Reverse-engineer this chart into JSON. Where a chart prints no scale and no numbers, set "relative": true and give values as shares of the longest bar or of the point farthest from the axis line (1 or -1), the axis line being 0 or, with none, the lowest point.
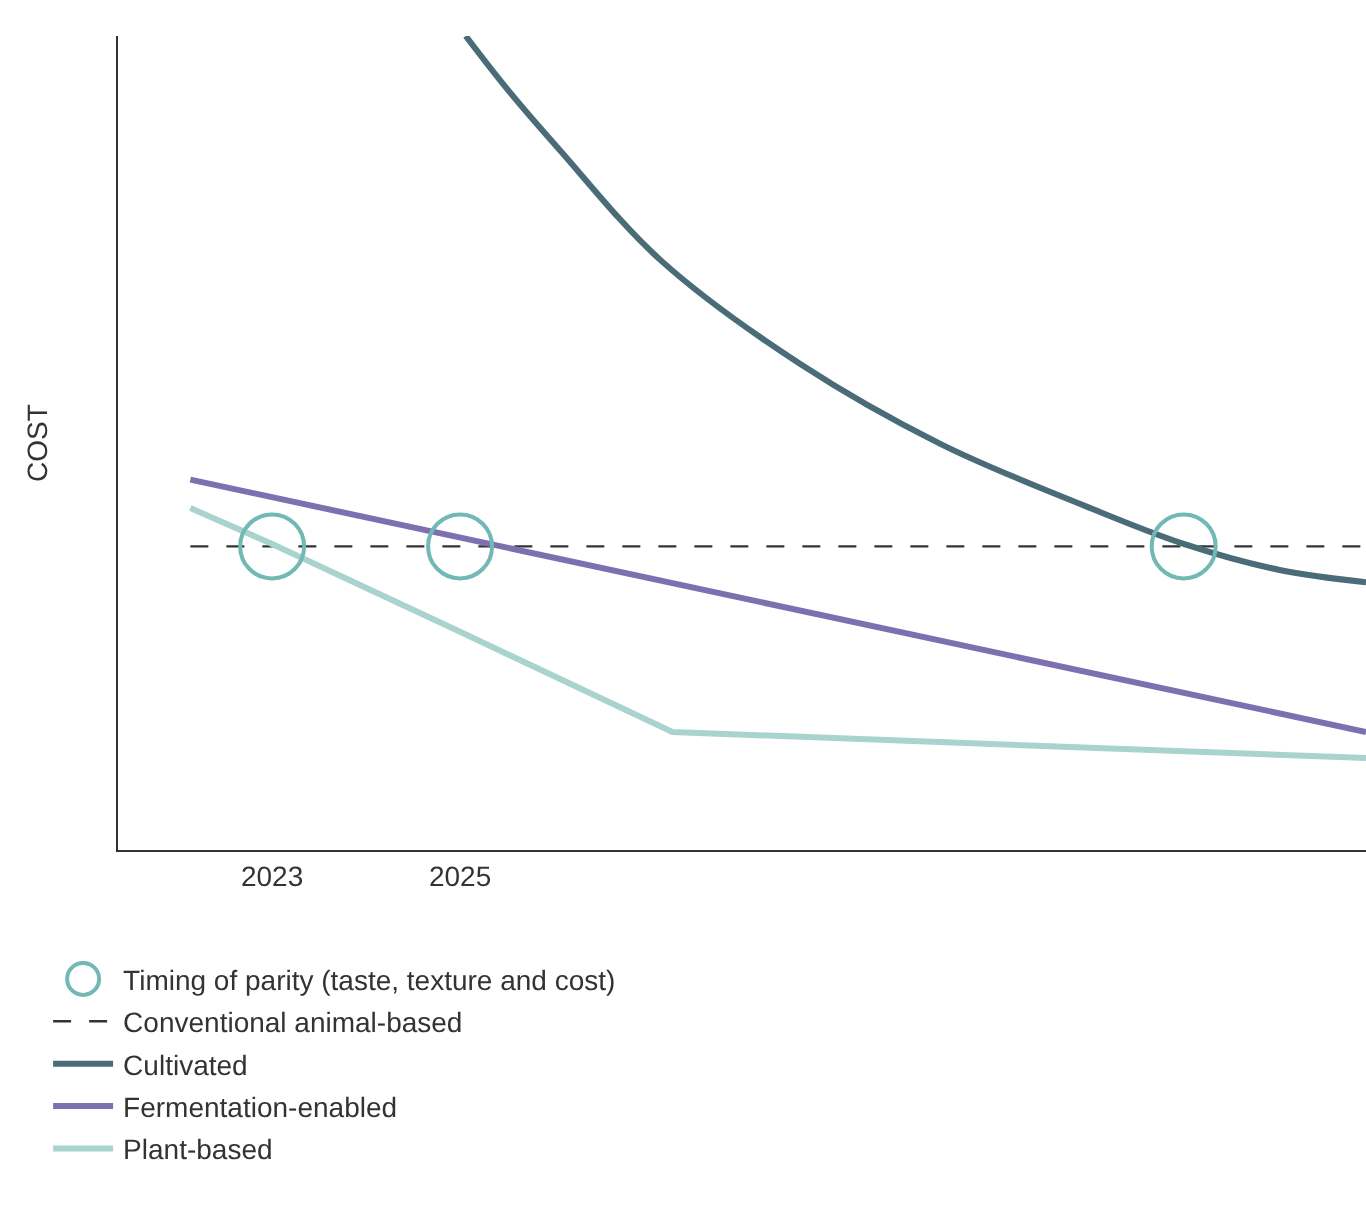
{
  "chart_data": {
    "type": "line",
    "relative": true,
    "ylabel": "COST",
    "xlim": [
      2021.36,
      2034.64
    ],
    "xticks": [
      2023,
      2025
    ],
    "grid": false,
    "legend": "bottom",
    "marker": "none",
    "tick_labels": "x",
    "series": [
      {
        "name": "Timing of parity (taste, texture and cost)",
        "type": "scatter",
        "marker": "circle",
        "color": "#72b8b5",
        "x": [
          2023,
          2025,
          2032.7
        ],
        "values": [
          0.373,
          0.373,
          0.373
        ]
      },
      {
        "name": "Conventional animal-based",
        "color": "#333333",
        "line_style": "dashed",
        "x": [
          2022.13,
          2034.64
        ],
        "values": [
          0.373,
          0.373
        ]
      },
      {
        "name": "Cultivated",
        "color": "#4a6b78",
        "x": [
          2025.06,
          2025.5,
          2026.06,
          2027.13,
          2028.62,
          2030.11,
          2031.6,
          2032.7,
          2033.72,
          2034.64
        ],
        "values": [
          1.0,
          0.935,
          0.86,
          0.725,
          0.597,
          0.499,
          0.425,
          0.376,
          0.344,
          0.329
        ]
      },
      {
        "name": "Fermentation-enabled",
        "color": "#7e70b0",
        "x": [
          2022.13,
          2034.64
        ],
        "values": [
          0.455,
          0.145
        ]
      },
      {
        "name": "Plant-based",
        "color": "#a9d3ce",
        "x": [
          2022.13,
          2023,
          2025,
          2027.26,
          2034.64
        ],
        "values": [
          0.42,
          0.376,
          0.268,
          0.145,
          0.113
        ]
      }
    ]
  }
}
